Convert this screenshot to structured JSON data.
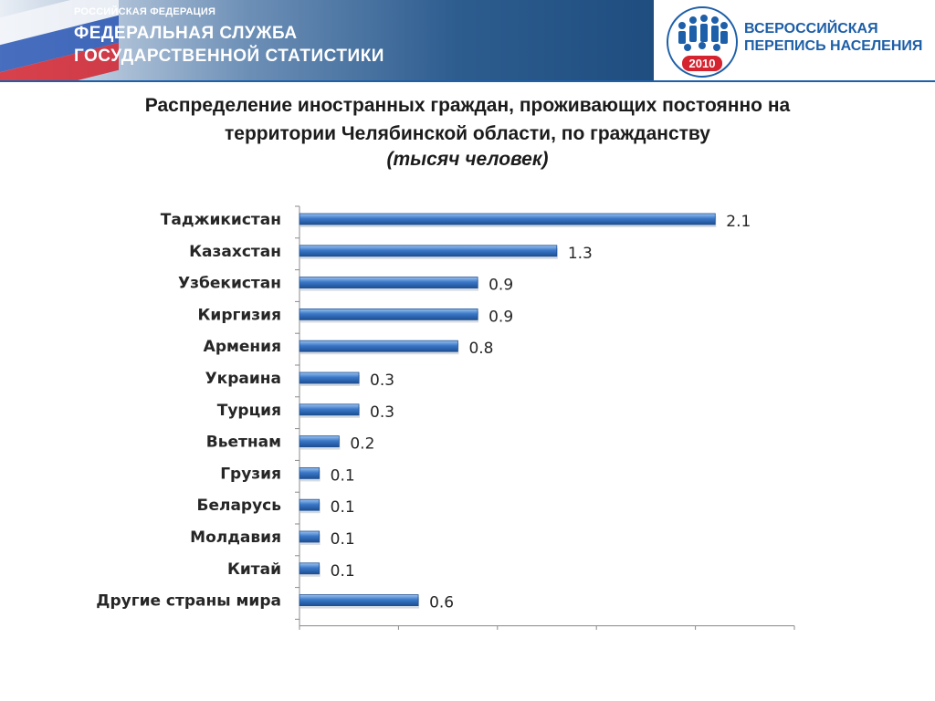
{
  "header": {
    "line1": "РОССИЙСКАЯ ФЕДЕРАЦИЯ",
    "line2": "ФЕДЕРАЛЬНАЯ СЛУЖБА",
    "line3": "ГОСУДАРСТВЕННОЙ СТАТИСТИКИ",
    "census_line1": "ВСЕРОССИЙСКАЯ",
    "census_line2": "ПЕРЕПИСЬ НАСЕЛЕНИЯ",
    "census_year": "2010",
    "accent_color": "#1d5fa8"
  },
  "chart_data": {
    "type": "bar",
    "orientation": "horizontal",
    "title_line1": "Распределение иностранных граждан, проживающих постоянно на",
    "title_line2": "территории Челябинской области,  по гражданству",
    "subtitle": "(тысяч человек)",
    "categories": [
      "Таджикистан",
      "Казахстан",
      "Узбекистан",
      "Киргизия",
      "Армения",
      "Украина",
      "Турция",
      "Вьетнам",
      "Грузия",
      "Беларусь",
      "Молдавия",
      "Китай",
      "Другие страны мира"
    ],
    "values": [
      2.1,
      1.3,
      0.9,
      0.9,
      0.8,
      0.3,
      0.3,
      0.2,
      0.1,
      0.1,
      0.1,
      0.1,
      0.6
    ],
    "value_labels": [
      "2.1",
      "1.3",
      "0.9",
      "0.9",
      "0.8",
      "0.3",
      "0.3",
      "0.2",
      "0.1",
      "0.1",
      "0.1",
      "0.1",
      "0.6"
    ],
    "xlim": [
      0,
      2.5
    ],
    "bar_color": "#3b78c8",
    "grid": false,
    "legend": "none"
  }
}
